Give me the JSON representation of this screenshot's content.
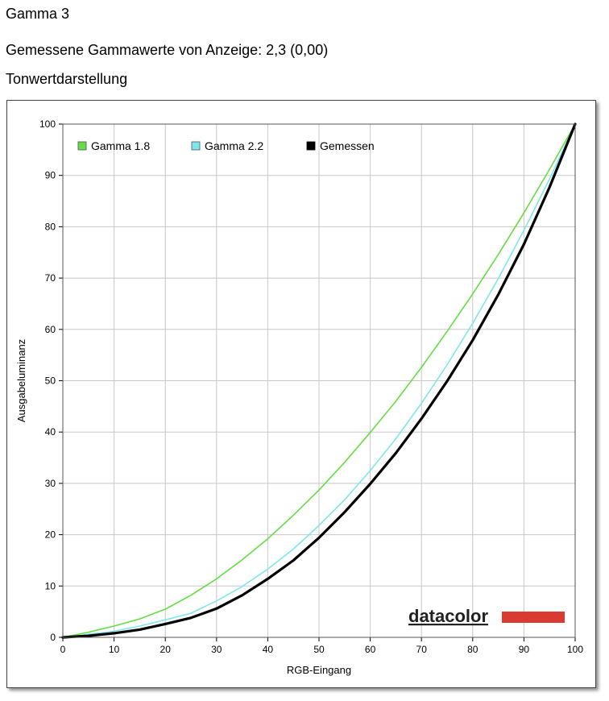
{
  "header": {
    "title": "Gamma 3",
    "measured": "Gemessene Gammawerte von Anzeige: 2,3 (0,00)",
    "section": "Tonwertdarstellung"
  },
  "logo": {
    "text": "datacolor",
    "bar_color": "#d93a32"
  },
  "chart_data": {
    "type": "line",
    "xlabel": "RGB-Eingang",
    "ylabel": "Ausgabeluminanz",
    "xlim": [
      0,
      100
    ],
    "ylim": [
      0,
      100
    ],
    "xticks": [
      "0",
      "10",
      "20",
      "30",
      "40",
      "50",
      "60",
      "70",
      "80",
      "90",
      "100"
    ],
    "yticks": [
      "0",
      "10",
      "20",
      "30",
      "40",
      "50",
      "60",
      "70",
      "80",
      "90",
      "100"
    ],
    "grid": true,
    "legend_position": "top-left",
    "x": [
      0,
      5,
      10,
      15,
      20,
      25,
      30,
      35,
      40,
      45,
      50,
      55,
      60,
      65,
      70,
      75,
      80,
      85,
      90,
      95,
      100
    ],
    "series": [
      {
        "name": "Gamma 1.8",
        "color": "#66dd44",
        "values": [
          0,
          1.0,
          2.2,
          3.6,
          5.5,
          8.2,
          11.4,
          15.1,
          19.2,
          23.8,
          28.7,
          34.1,
          39.9,
          46.0,
          52.6,
          59.6,
          66.9,
          74.6,
          82.7,
          91.2,
          100
        ]
      },
      {
        "name": "Gamma 2.2",
        "color": "#7fe6f0",
        "values": [
          0,
          0.6,
          1.2,
          2.2,
          3.4,
          4.7,
          7.1,
          9.9,
          13.3,
          17.2,
          21.8,
          26.8,
          32.5,
          38.7,
          45.6,
          53.1,
          61.2,
          69.9,
          79.3,
          89.3,
          100
        ]
      },
      {
        "name": "Gemessen",
        "color": "#000000",
        "values": [
          0,
          0.3,
          0.8,
          1.5,
          2.6,
          3.8,
          5.6,
          8.2,
          11.4,
          15.0,
          19.4,
          24.4,
          29.9,
          35.9,
          42.6,
          49.9,
          57.9,
          66.8,
          76.6,
          87.7,
          100
        ]
      }
    ]
  }
}
